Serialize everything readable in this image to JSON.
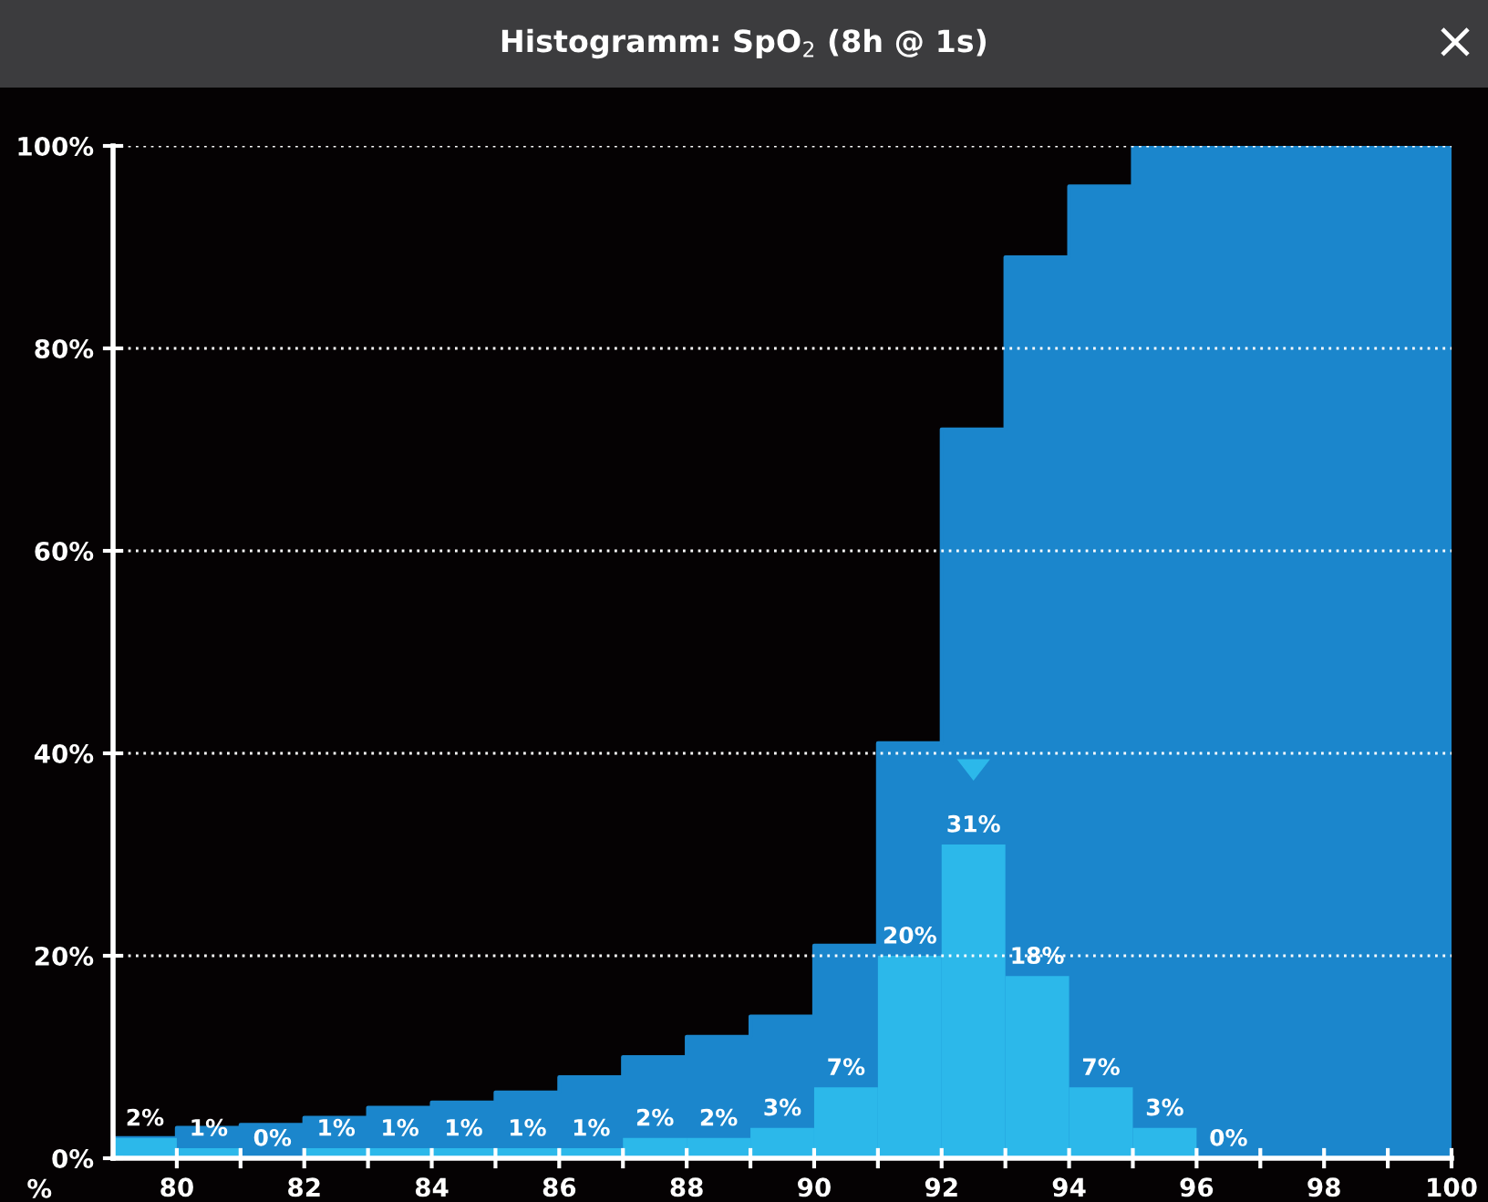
{
  "chart_data": {
    "type": "histogram",
    "title": "Histogramm: SpO$_{2}$ (8h @ 1s)",
    "xlabel": "%",
    "annotations": [
      "×"
    ],
    "series": [
      {
        "type": "area",
        "color": "#1b86cc",
        "x": [
          79,
          80,
          80,
          81,
          81,
          82,
          82,
          83,
          83,
          84,
          84,
          85,
          85,
          86,
          86,
          87,
          87,
          88,
          88,
          89,
          89,
          90,
          90,
          91,
          91,
          92,
          92,
          93,
          93,
          94,
          94,
          95,
          95,
          100
        ],
        "values": [
          2,
          2,
          3,
          3,
          3.3,
          3.3,
          4,
          4,
          5,
          5,
          5.5,
          5.5,
          6.5,
          6.5,
          8,
          8,
          10,
          10,
          12,
          12,
          14,
          14,
          21,
          21,
          41,
          41,
          72,
          72,
          89,
          89,
          96,
          96,
          100,
          100
        ]
      },
      {
        "color": "#2cb8ea",
        "bins": [
          79,
          80,
          81,
          82,
          83,
          84,
          85,
          86,
          87,
          88,
          89,
          90,
          91,
          92,
          93,
          94,
          95,
          96,
          97
        ],
        "values": [
          2,
          1,
          0,
          1,
          1,
          1,
          1,
          1,
          2,
          2,
          3,
          7,
          20,
          31,
          18,
          7,
          3,
          0
        ],
        "value_labels": [
          "2%",
          "1%",
          "0%",
          "1%",
          "1%",
          "1%",
          "1%",
          "1%",
          "2%",
          "2%",
          "3%",
          "7%",
          "20%",
          "31%",
          "18%",
          "7%",
          "3%",
          "0%"
        ]
      }
    ],
    "xlim": [
      79,
      100
    ],
    "xticks": [
      80,
      {
        "value": 81,
        "label": null
      },
      82,
      {
        "value": 83,
        "label": null
      },
      84,
      {
        "value": 85,
        "label": null
      },
      86,
      {
        "value": 87,
        "label": null
      },
      88,
      {
        "value": 89,
        "label": null
      },
      90,
      {
        "value": 91,
        "label": null
      },
      92,
      {
        "value": 93,
        "label": null
      },
      94,
      {
        "value": 95,
        "label": null
      },
      96,
      {
        "value": 97,
        "label": null
      },
      98,
      {
        "value": 99,
        "label": null
      },
      100
    ],
    "ylim": [
      0,
      100
    ],
    "yticks": [
      {
        "value": 0,
        "label": "0%"
      },
      {
        "value": 20,
        "label": "20%"
      },
      {
        "value": 40,
        "label": "40%"
      },
      {
        "value": 60,
        "label": "60%"
      },
      {
        "value": 80,
        "label": "80%"
      },
      {
        "value": 100,
        "label": "100%"
      }
    ],
    "grid": "y"
  }
}
